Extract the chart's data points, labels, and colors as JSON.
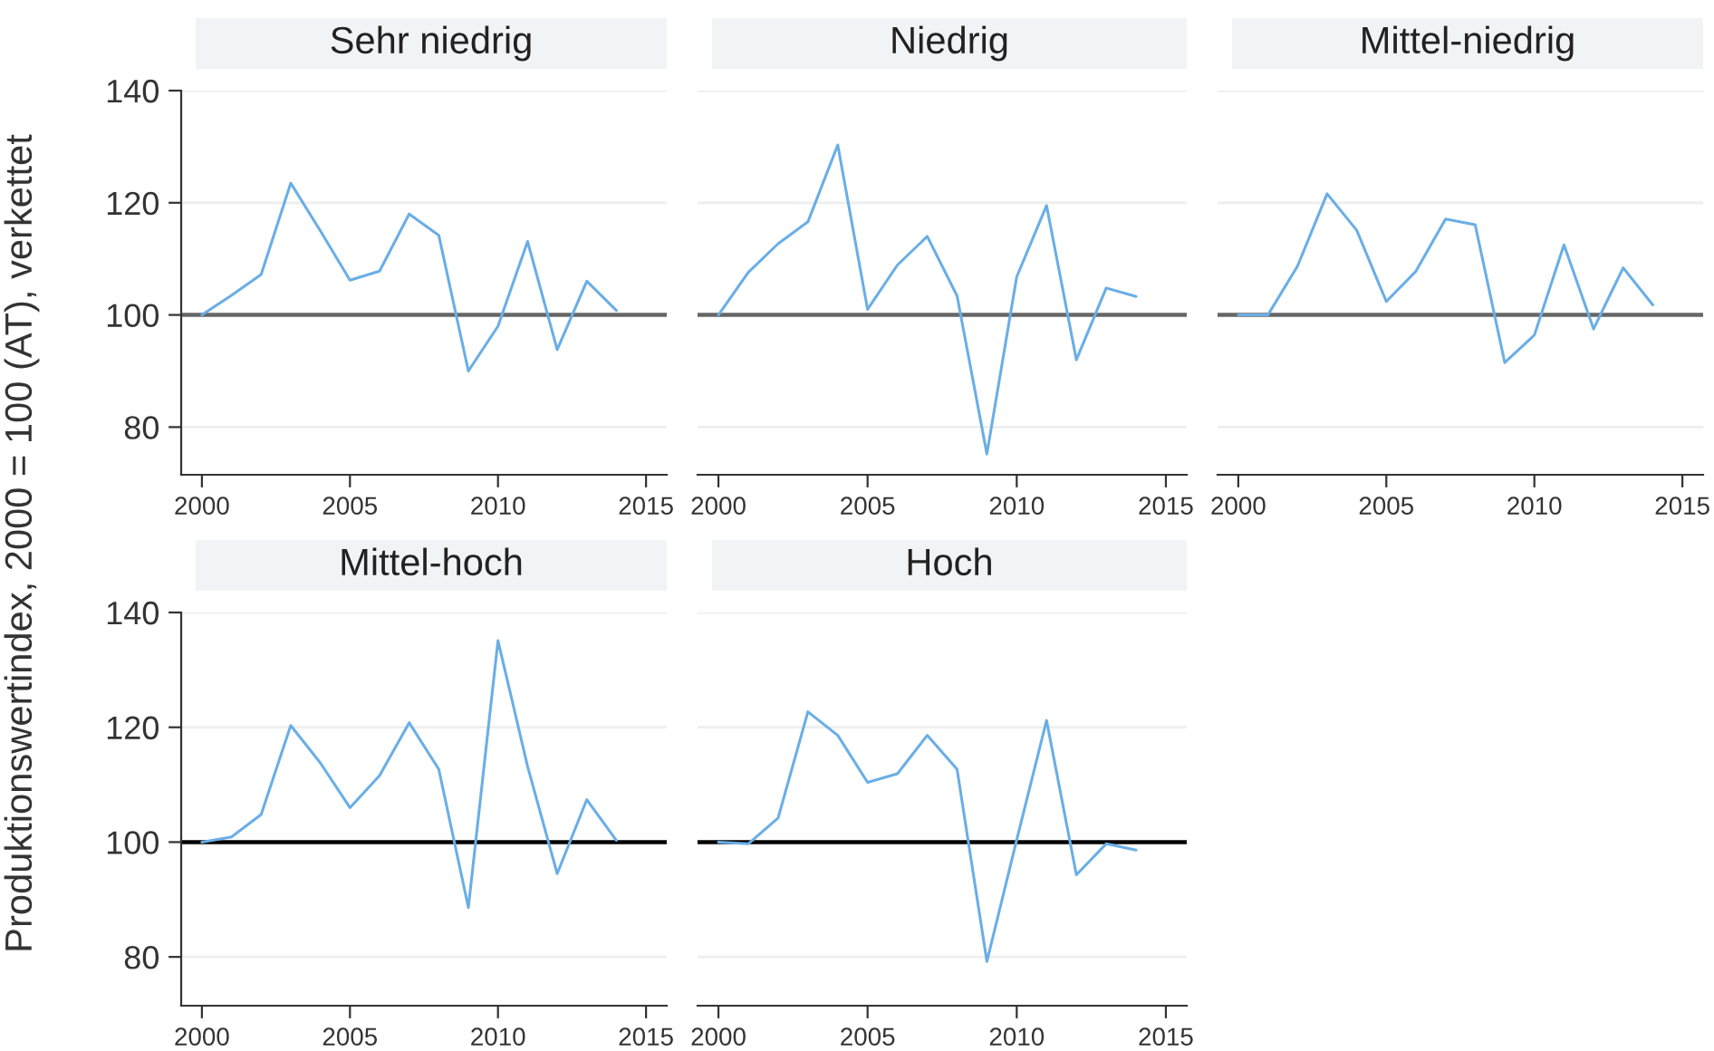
{
  "chart_data": [
    {
      "type": "line",
      "title": "Sehr niedrig",
      "ylabel": "Produktionswertindex, 2000 = 100 (AT), verkettet",
      "x": [
        2000,
        2001,
        2002,
        2003,
        2004,
        2005,
        2006,
        2007,
        2008,
        2009,
        2010,
        2011,
        2012,
        2013,
        2014
      ],
      "series": [
        {
          "color": "#6aaee6",
          "values": [
            100,
            103.5,
            107.2,
            123.5,
            115,
            106.2,
            107.8,
            118,
            114.2,
            90,
            98,
            113.1,
            93.8,
            106,
            100.8
          ]
        }
      ],
      "xlim": [
        1999.3,
        2015.7
      ],
      "xticks": [
        2000,
        2005,
        2010,
        2015
      ],
      "ylim": [
        71.5,
        140
      ],
      "yticks": [
        80,
        100,
        120,
        140
      ],
      "grid": "y",
      "legend": false,
      "ref_lines": [
        {
          "axis": "y",
          "value": 100,
          "color": "#666666"
        }
      ]
    },
    {
      "type": "line",
      "title": "Niedrig",
      "x": [
        2000,
        2001,
        2002,
        2003,
        2004,
        2005,
        2006,
        2007,
        2008,
        2009,
        2010,
        2011,
        2012,
        2013,
        2014
      ],
      "series": [
        {
          "color": "#6aaee6",
          "values": [
            100,
            107.6,
            112.7,
            116.6,
            130.3,
            101,
            108.9,
            114,
            103.4,
            75.2,
            106.8,
            119.5,
            92,
            104.8,
            103.3
          ]
        }
      ],
      "xlim": [
        1999.3,
        2015.7
      ],
      "xticks": [
        2000,
        2005,
        2010,
        2015
      ],
      "ylim": [
        71.5,
        140
      ],
      "yticks": [
        80,
        100,
        120,
        140
      ],
      "grid": "y",
      "legend": false,
      "tick_labels": "x",
      "ref_lines": [
        {
          "axis": "y",
          "value": 100,
          "color": "#666666"
        }
      ]
    },
    {
      "type": "line",
      "title": "Mittel-niedrig",
      "x": [
        2000,
        2001,
        2002,
        2003,
        2004,
        2005,
        2006,
        2007,
        2008,
        2009,
        2010,
        2011,
        2012,
        2013,
        2014
      ],
      "series": [
        {
          "color": "#6aaee6",
          "values": [
            100,
            100,
            108.7,
            121.6,
            115.1,
            102.4,
            107.8,
            117.1,
            116.1,
            91.5,
            96.4,
            112.5,
            97.5,
            108.4,
            101.8
          ]
        }
      ],
      "xlim": [
        1999.3,
        2015.7
      ],
      "xticks": [
        2000,
        2005,
        2010,
        2015
      ],
      "ylim": [
        71.5,
        140
      ],
      "yticks": [
        80,
        100,
        120,
        140
      ],
      "grid": "y",
      "legend": false,
      "tick_labels": "x",
      "ref_lines": [
        {
          "axis": "y",
          "value": 100,
          "color": "#666666"
        }
      ]
    },
    {
      "type": "line",
      "title": "Mittel-hoch",
      "x": [
        2000,
        2001,
        2002,
        2003,
        2004,
        2005,
        2006,
        2007,
        2008,
        2009,
        2010,
        2011,
        2012,
        2013,
        2014
      ],
      "series": [
        {
          "color": "#6aaee6",
          "values": [
            100,
            100.9,
            104.8,
            120.3,
            113.8,
            106,
            111.6,
            120.8,
            112.7,
            88.6,
            135.1,
            113.2,
            94.5,
            107.4,
            100.3
          ]
        }
      ],
      "xlim": [
        1999.3,
        2015.7
      ],
      "xticks": [
        2000,
        2005,
        2010,
        2015
      ],
      "ylim": [
        71.5,
        140
      ],
      "yticks": [
        80,
        100,
        120,
        140
      ],
      "grid": "y",
      "legend": false,
      "ref_lines": [
        {
          "axis": "y",
          "value": 100,
          "color": "#000000"
        }
      ]
    },
    {
      "type": "line",
      "title": "Hoch",
      "x": [
        2000,
        2001,
        2002,
        2003,
        2004,
        2005,
        2006,
        2007,
        2008,
        2009,
        2010,
        2011,
        2012,
        2013,
        2014
      ],
      "series": [
        {
          "color": "#6aaee6",
          "values": [
            100,
            99.7,
            104.2,
            122.7,
            118.6,
            110.4,
            111.9,
            118.6,
            112.7,
            79.2,
            100.4,
            121.2,
            94.3,
            99.7,
            98.6
          ]
        }
      ],
      "xlim": [
        1999.3,
        2015.7
      ],
      "xticks": [
        2000,
        2005,
        2010,
        2015
      ],
      "ylim": [
        71.5,
        140
      ],
      "yticks": [
        80,
        100,
        120,
        140
      ],
      "grid": "y",
      "legend": false,
      "tick_labels": "x",
      "ref_lines": [
        {
          "axis": "y",
          "value": 100,
          "color": "#000000"
        }
      ]
    }
  ]
}
